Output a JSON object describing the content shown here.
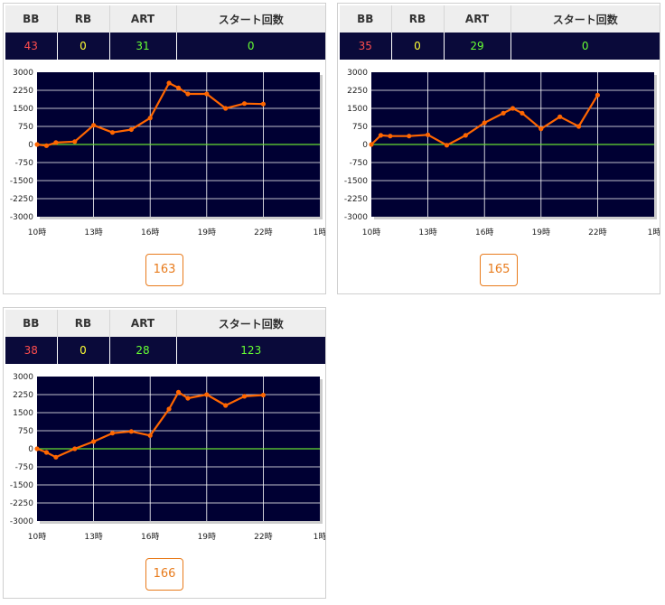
{
  "headers": [
    "BB",
    "RB",
    "ART",
    "スタート回数"
  ],
  "colors": {
    "bb": "#ff4d4d",
    "rb": "#ffff33",
    "art": "#66ff33",
    "start": "#66ff33",
    "line": "#ff6600",
    "zero": "#66dd33",
    "plot_bg": "#000033"
  },
  "cards": [
    {
      "bb": "43",
      "rb": "0",
      "art": "31",
      "start": "0",
      "machine": "163"
    },
    {
      "bb": "35",
      "rb": "0",
      "art": "29",
      "start": "0",
      "machine": "165"
    },
    {
      "bb": "38",
      "rb": "0",
      "art": "28",
      "start": "123",
      "machine": "166"
    }
  ],
  "chart_data": [
    {
      "type": "line",
      "x_ticks": [
        "10時",
        "13時",
        "16時",
        "19時",
        "22時",
        "1時"
      ],
      "y_ticks": [
        3000,
        2250,
        1500,
        750,
        0,
        -750,
        -1500,
        -2250,
        -3000
      ],
      "ylim": [
        -3000,
        3000
      ],
      "xlim": [
        10,
        25
      ],
      "grid": true,
      "x": [
        10,
        10.5,
        11,
        12,
        13,
        14,
        15,
        16,
        17,
        17.5,
        18,
        19,
        20,
        21,
        22
      ],
      "y": [
        0,
        -50,
        80,
        120,
        800,
        500,
        620,
        1100,
        2550,
        2350,
        2100,
        2100,
        1500,
        1700,
        1680
      ]
    },
    {
      "type": "line",
      "x_ticks": [
        "10時",
        "13時",
        "16時",
        "19時",
        "22時",
        "1時"
      ],
      "y_ticks": [
        3000,
        2250,
        1500,
        750,
        0,
        -750,
        -1500,
        -2250,
        -3000
      ],
      "ylim": [
        -3000,
        3000
      ],
      "xlim": [
        10,
        25
      ],
      "grid": true,
      "x": [
        10,
        10.5,
        11,
        12,
        13,
        14,
        15,
        16,
        17,
        17.5,
        18,
        19,
        20,
        21,
        22
      ],
      "y": [
        0,
        380,
        350,
        350,
        400,
        -30,
        380,
        900,
        1300,
        1500,
        1300,
        650,
        1150,
        750,
        2050
      ]
    },
    {
      "type": "line",
      "x_ticks": [
        "10時",
        "13時",
        "16時",
        "19時",
        "22時",
        "1時"
      ],
      "y_ticks": [
        3000,
        2250,
        1500,
        750,
        0,
        -750,
        -1500,
        -2250,
        -3000
      ],
      "ylim": [
        -3000,
        3000
      ],
      "xlim": [
        10,
        25
      ],
      "grid": true,
      "x": [
        10,
        10.5,
        11,
        12,
        13,
        14,
        15,
        16,
        17,
        17.5,
        18,
        19,
        20,
        21,
        22
      ],
      "y": [
        0,
        -150,
        -350,
        0,
        300,
        650,
        720,
        550,
        1650,
        2350,
        2100,
        2250,
        1800,
        2180,
        2230
      ]
    }
  ]
}
